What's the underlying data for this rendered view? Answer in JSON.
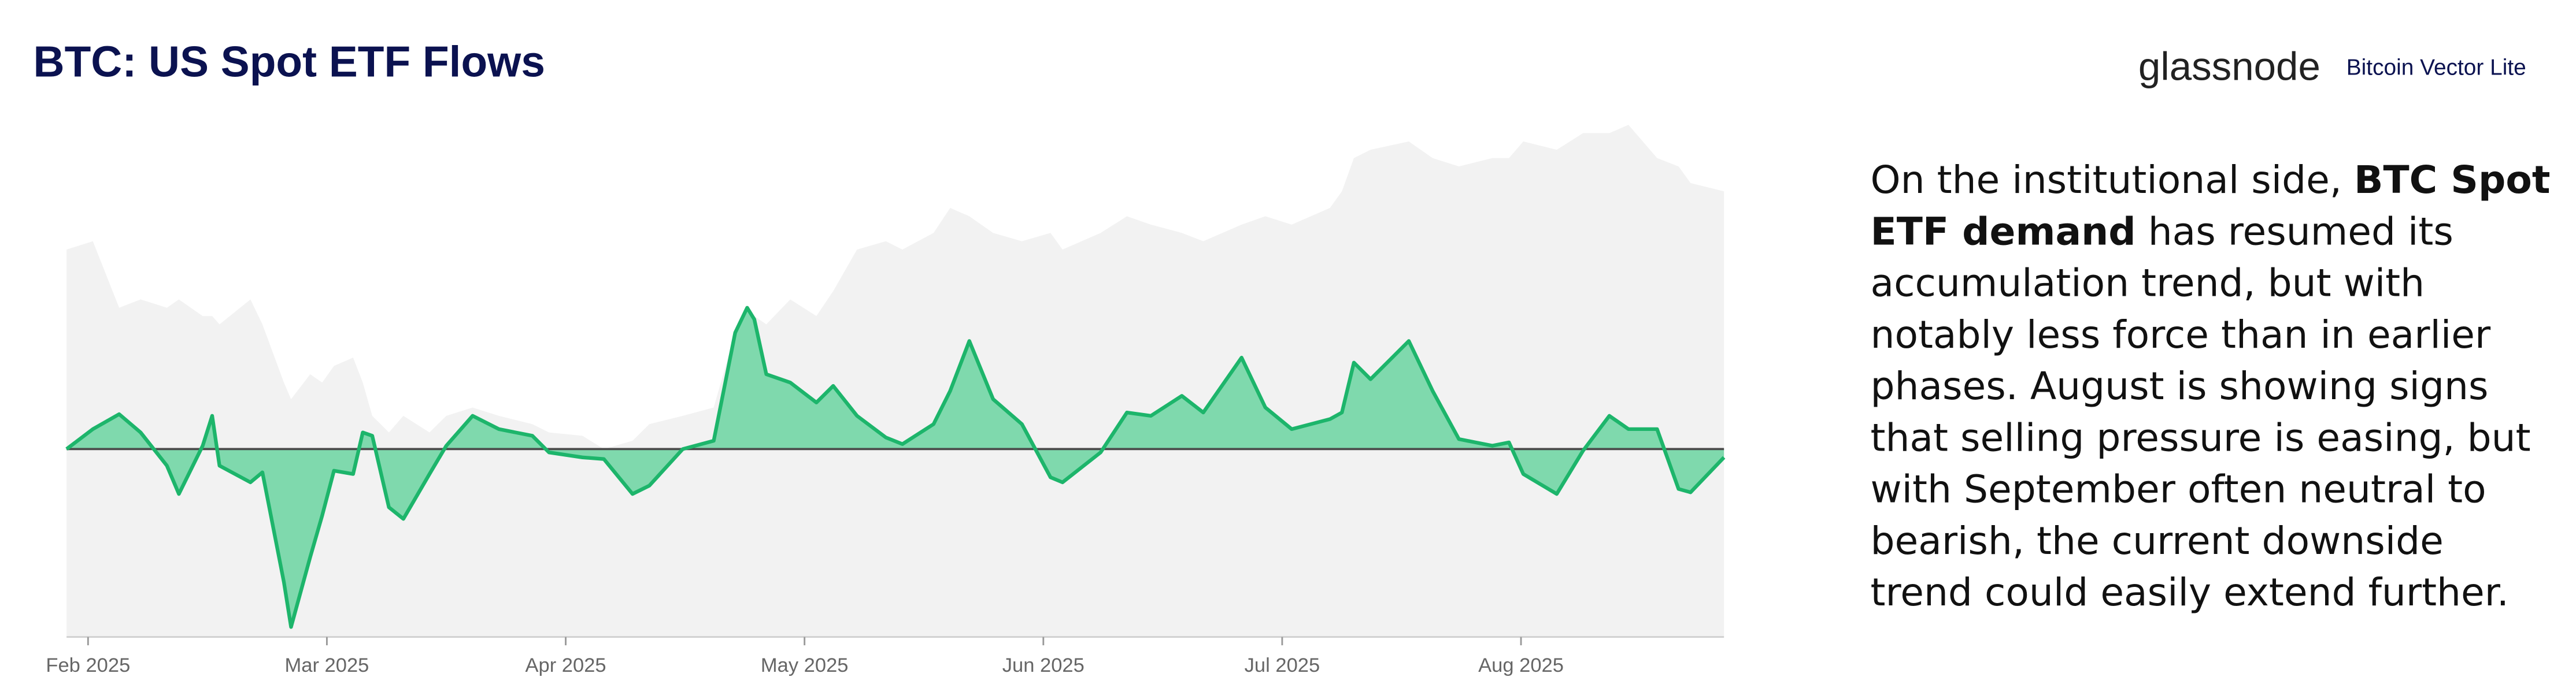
{
  "chart_data": {
    "type": "area",
    "title": "BTC: US Spot ETF Flows",
    "brand": "glassnode",
    "brand_product": "Bitcoin Vector Lite",
    "commentary": [
      {
        "text": "On the institutional side, "
      },
      {
        "text": "BTC Spot ETF demand",
        "bold": true
      },
      {
        "text": " has resumed its accumulation trend, but with notably less force than in earlier phases. August is showing signs that selling pressure is easing, but with September often neutral to bearish, the current downside trend could easily extend further."
      }
    ],
    "x": [
      1.91,
      2.02,
      2.13,
      2.22,
      2.33,
      2.38,
      2.48,
      2.52,
      2.55,
      2.68,
      2.73,
      2.82,
      2.85,
      2.93,
      2.98,
      3.03,
      3.11,
      3.15,
      3.19,
      3.26,
      3.32,
      3.43,
      3.5,
      3.61,
      3.72,
      3.86,
      3.93,
      4.07,
      4.16,
      4.28,
      4.35,
      4.49,
      4.62,
      4.71,
      4.76,
      4.79,
      4.84,
      4.94,
      5.05,
      5.12,
      5.22,
      5.34,
      5.41,
      5.54,
      5.61,
      5.69,
      5.79,
      5.91,
      6.03,
      6.08,
      6.24,
      6.35,
      6.45,
      6.58,
      6.67,
      6.83,
      6.93,
      7.04,
      7.2,
      7.25,
      7.3,
      7.37,
      7.53,
      7.63,
      7.74,
      7.88,
      7.95,
      8.01,
      8.15,
      8.26,
      8.37,
      8.45,
      8.57,
      8.66,
      8.71,
      8.85
    ],
    "series": [
      {
        "color": "#1db56b",
        "fill": "#7fd9ad",
        "values": [
          0,
          12,
          21,
          10,
          -10,
          -27,
          2,
          20,
          -10,
          -20,
          -14,
          -80,
          -107,
          -65,
          -40,
          -13,
          -15,
          10,
          8,
          -35,
          -42,
          -15,
          2,
          20,
          12,
          8,
          -2,
          -5,
          -6,
          -27,
          -22,
          0,
          5,
          70,
          85,
          78,
          45,
          40,
          28,
          38,
          20,
          7,
          3,
          15,
          35,
          65,
          30,
          15,
          -17,
          -20,
          -2,
          22,
          20,
          32,
          22,
          55,
          25,
          12,
          18,
          22,
          52,
          42,
          65,
          35,
          6,
          2,
          4,
          -15,
          -27,
          -1,
          20,
          12,
          12,
          -24,
          -26,
          -5
        ]
      },
      {
        "color": "#f2f2f2",
        "axis": "y2",
        "values": [
          233,
          238,
          198,
          203,
          198,
          203,
          193,
          193,
          188,
          203,
          188,
          153,
          143,
          158,
          153,
          163,
          168,
          153,
          133,
          123,
          133,
          123,
          133,
          138,
          133,
          128,
          123,
          121,
          113,
          118,
          128,
          133,
          138,
          183,
          198,
          193,
          188,
          203,
          193,
          208,
          233,
          238,
          233,
          243,
          258,
          253,
          243,
          238,
          243,
          233,
          243,
          253,
          248,
          243,
          238,
          248,
          253,
          248,
          258,
          268,
          288,
          293,
          298,
          288,
          283,
          288,
          288,
          298,
          293,
          303,
          303,
          308,
          288,
          283,
          273,
          268
        ]
      }
    ],
    "xlim": [
      1.91,
      8.85
    ],
    "xticks": [
      {
        "value": 2,
        "label": "Feb 2025"
      },
      {
        "value": 3,
        "label": "Mar 2025"
      },
      {
        "value": 4,
        "label": "Apr 2025"
      },
      {
        "value": 5,
        "label": "May 2025"
      },
      {
        "value": 6,
        "label": "Jun 2025"
      },
      {
        "value": 7,
        "label": "Jul 2025"
      },
      {
        "value": 8,
        "label": "Aug 2025"
      }
    ],
    "ylim": [
      -113,
      205
    ],
    "y2lim": [
      0,
      318
    ]
  }
}
